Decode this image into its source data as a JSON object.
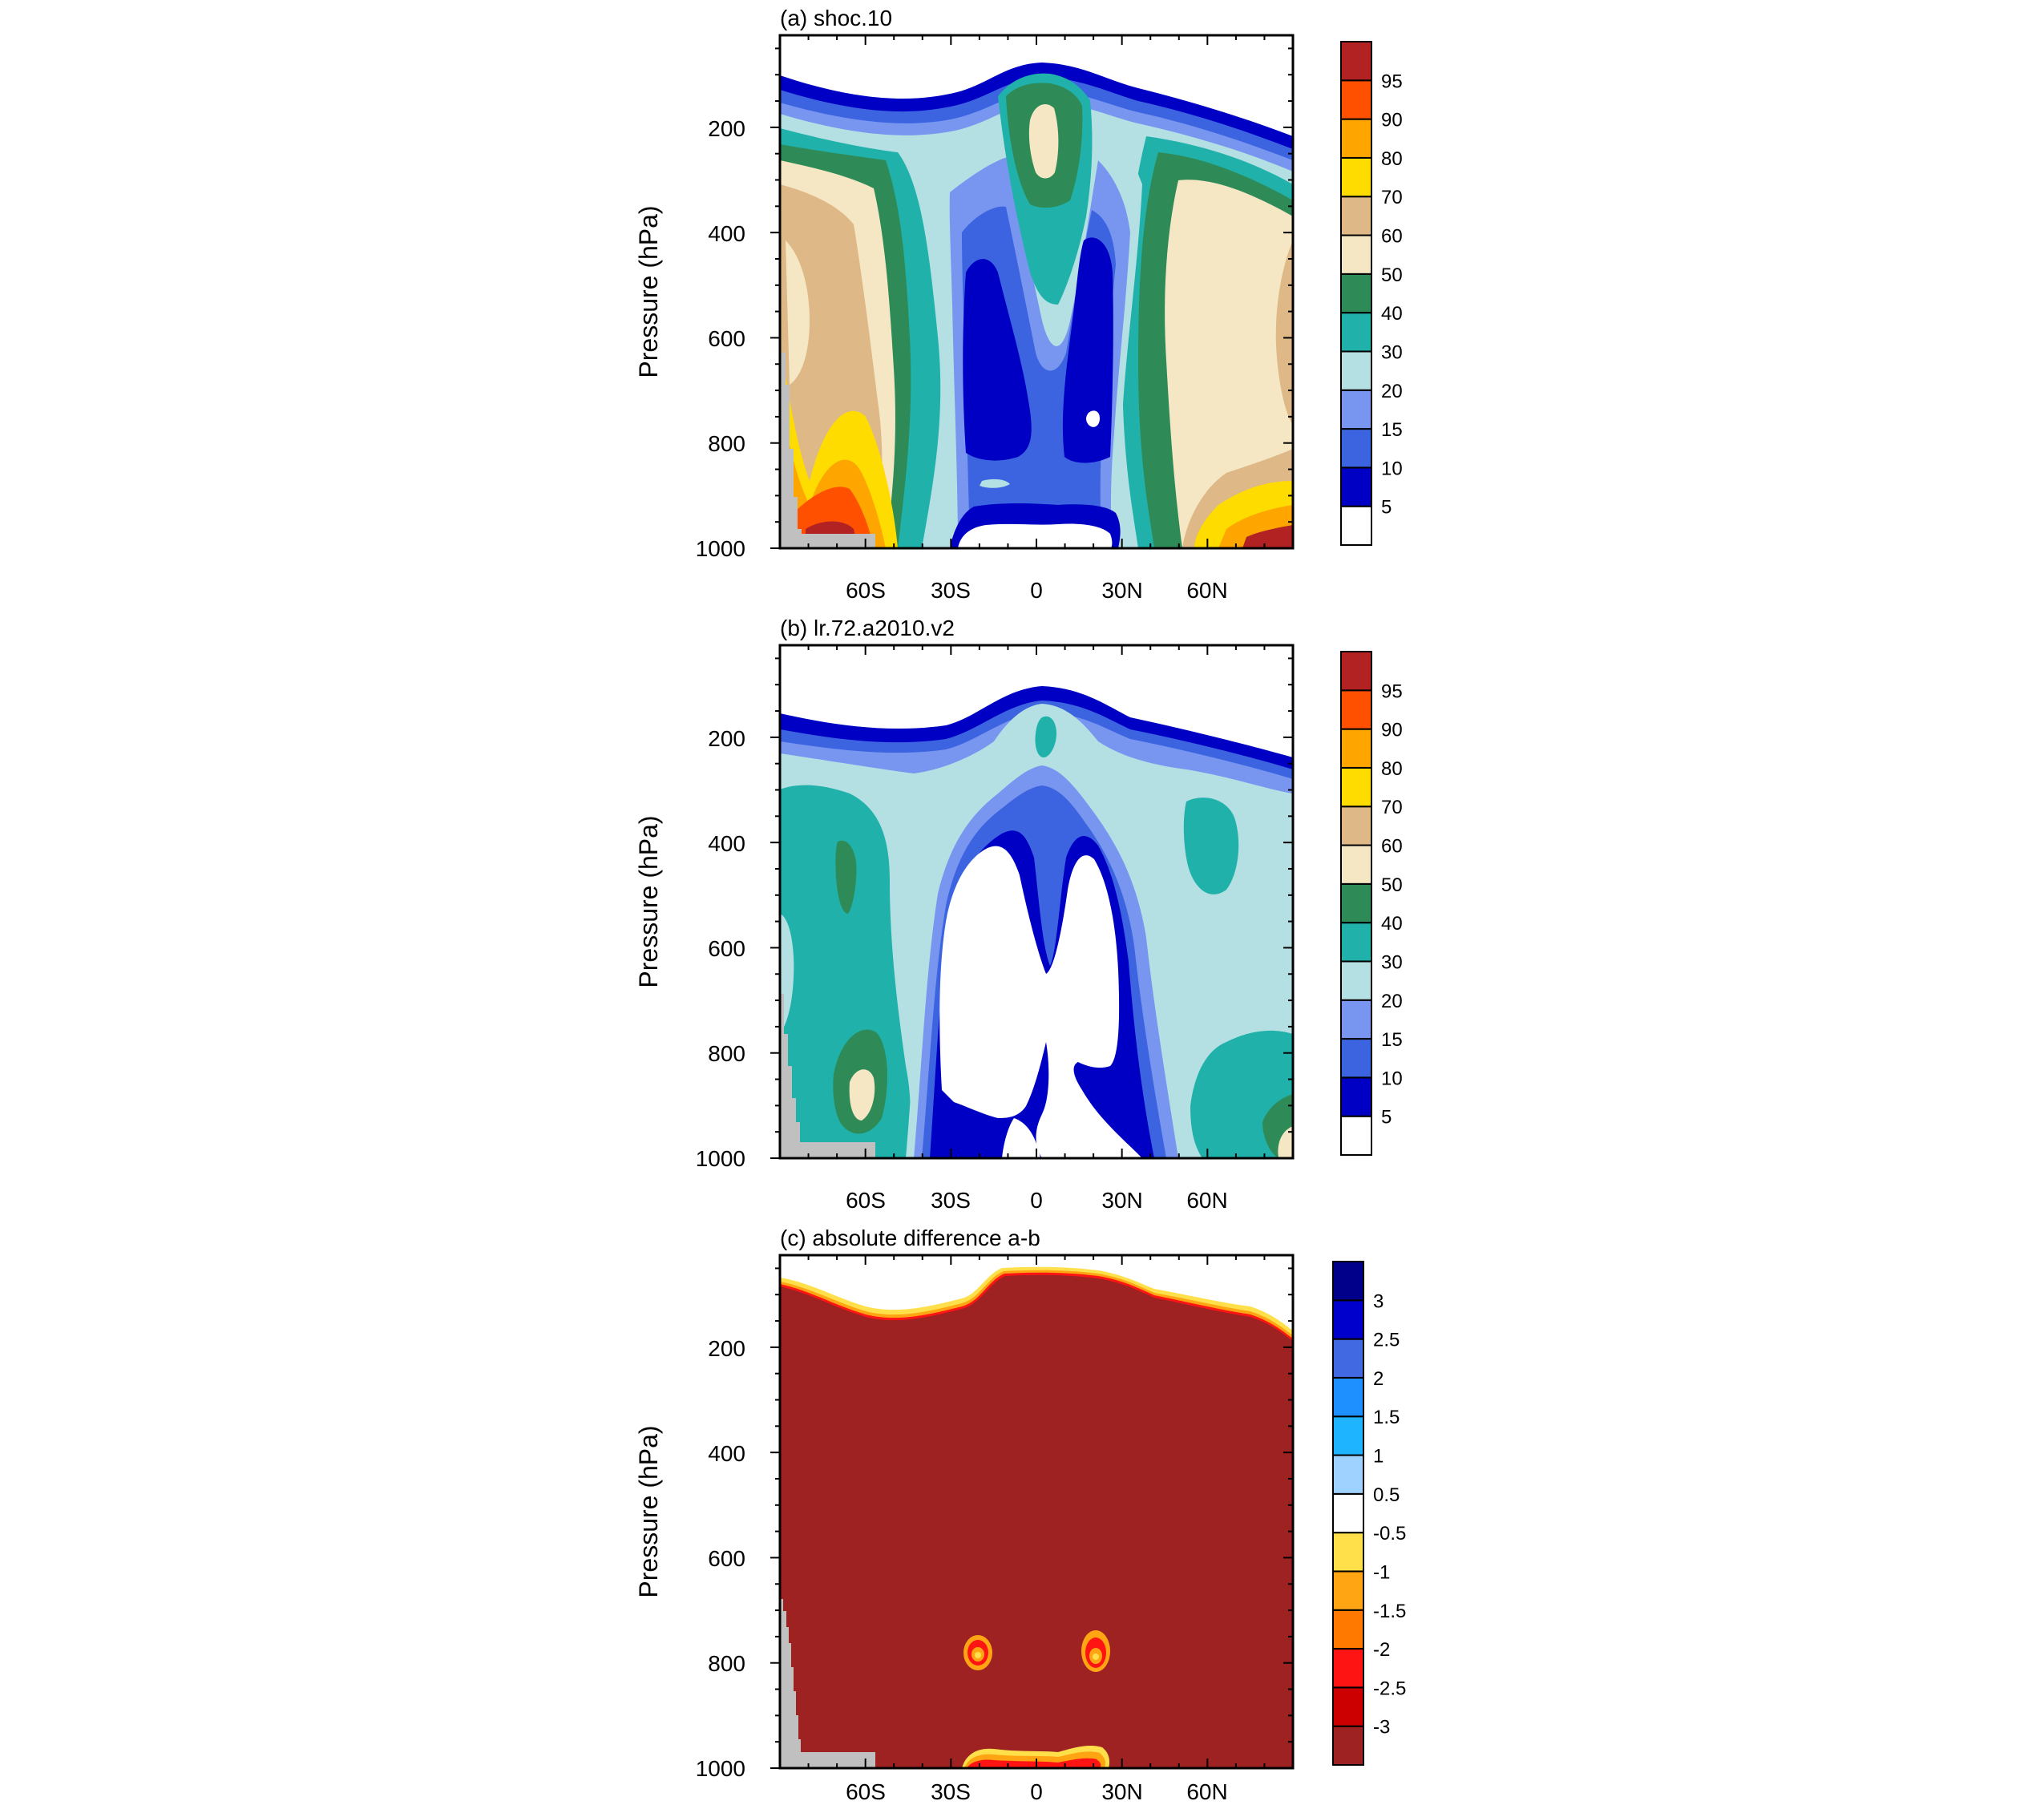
{
  "chart_data": [
    {
      "type": "heatmap",
      "title": "(a) shoc.10",
      "ylabel": "Pressure (hPa)",
      "xlabel": "",
      "xticks": [
        "60S",
        "30S",
        "0",
        "30N",
        "60N"
      ],
      "xtick_values": [
        -60,
        -30,
        0,
        30,
        60
      ],
      "xlim": [
        -90,
        90
      ],
      "yticks": [
        "200",
        "400",
        "600",
        "800",
        "1000"
      ],
      "ytick_values": [
        200,
        400,
        600,
        800,
        1000
      ],
      "ylim": [
        1000,
        25
      ],
      "y_reversed": true,
      "grid": false,
      "colorbar": {
        "labels": [
          "5",
          "10",
          "15",
          "20",
          "30",
          "40",
          "50",
          "60",
          "70",
          "80",
          "90",
          "95"
        ],
        "colors": [
          "#ffffff",
          "#0000c4",
          "#3c64e0",
          "#7896f0",
          "#b4e0e4",
          "#20b2aa",
          "#2e8b57",
          "#f5e6c4",
          "#deb887",
          "#ffdc00",
          "#ffa500",
          "#ff5000",
          "#b22222"
        ]
      },
      "description_values": {
        "tropical_mid_troposphere_minimum": "< 10",
        "high_latitude_lower_troposphere": "60-95"
      }
    },
    {
      "type": "heatmap",
      "title": "(b) lr.72.a2010.v2",
      "ylabel": "Pressure (hPa)",
      "xlabel": "",
      "xticks": [
        "60S",
        "30S",
        "0",
        "30N",
        "60N"
      ],
      "xtick_values": [
        -60,
        -30,
        0,
        30,
        60
      ],
      "xlim": [
        -90,
        90
      ],
      "yticks": [
        "200",
        "400",
        "600",
        "800",
        "1000"
      ],
      "ytick_values": [
        200,
        400,
        600,
        800,
        1000
      ],
      "ylim": [
        1000,
        25
      ],
      "y_reversed": true,
      "grid": false,
      "colorbar": {
        "labels": [
          "5",
          "10",
          "15",
          "20",
          "30",
          "40",
          "50",
          "60",
          "70",
          "80",
          "90",
          "95"
        ],
        "colors": [
          "#ffffff",
          "#0000c4",
          "#3c64e0",
          "#7896f0",
          "#b4e0e4",
          "#20b2aa",
          "#2e8b57",
          "#f5e6c4",
          "#deb887",
          "#ffdc00",
          "#ffa500",
          "#ff5000",
          "#b22222"
        ]
      }
    },
    {
      "type": "heatmap",
      "title": "(c) absolute difference a-b",
      "ylabel": "Pressure (hPa)",
      "xlabel": "",
      "xticks": [
        "60S",
        "30S",
        "0",
        "30N",
        "60N"
      ],
      "xtick_values": [
        -60,
        -30,
        0,
        30,
        60
      ],
      "xlim": [
        -90,
        90
      ],
      "yticks": [
        "200",
        "400",
        "600",
        "800",
        "1000"
      ],
      "ytick_values": [
        200,
        400,
        600,
        800,
        1000
      ],
      "ylim": [
        1000,
        25
      ],
      "y_reversed": true,
      "grid": false,
      "colorbar": {
        "labels": [
          "3",
          "2.5",
          "2",
          "1.5",
          "1",
          "0.5",
          "-0.5",
          "-1",
          "-1.5",
          "-2",
          "-2.5",
          "-3"
        ],
        "colors": [
          "#9e2222",
          "#cc0000",
          "#ff1414",
          "#ff7800",
          "#ffa514",
          "#ffe04a",
          "#ffffff",
          "#a0d2ff",
          "#1eb4ff",
          "#1e90ff",
          "#4169e1",
          "#0000cd",
          "#00008b"
        ]
      },
      "dominant_value": "> 3"
    }
  ],
  "colors": {
    "missing": "#c0c0c0",
    "frame": "#000000"
  }
}
